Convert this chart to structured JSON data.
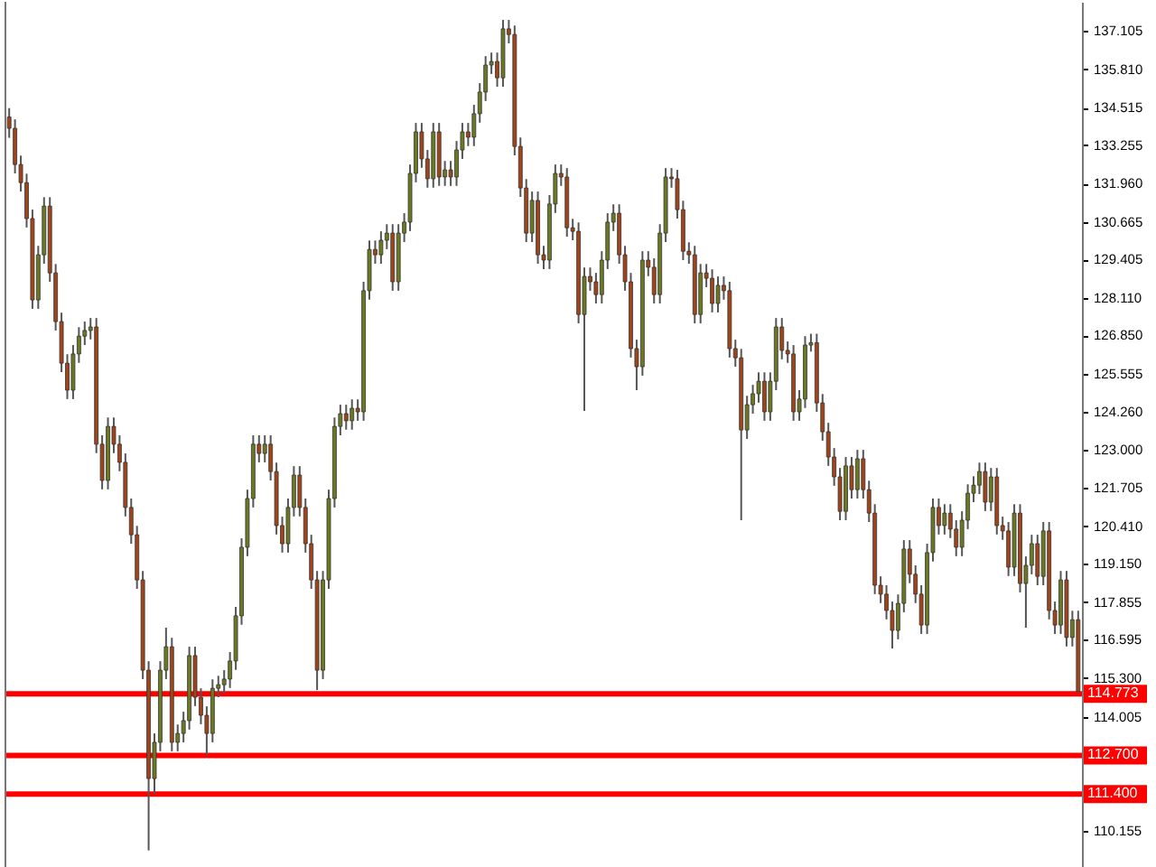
{
  "chart_data": {
    "type": "candlestick",
    "categories": [
      null,
      null,
      null,
      null,
      null,
      null,
      null,
      null,
      null,
      null,
      null,
      null,
      null,
      null,
      null,
      null,
      null,
      null,
      null,
      null,
      null,
      null,
      null,
      null,
      null,
      null,
      null,
      null,
      null,
      null,
      null,
      null,
      null,
      null,
      null,
      null,
      null,
      null,
      null,
      null,
      null,
      null,
      null,
      null,
      null,
      null,
      null,
      null,
      null,
      null,
      null,
      null,
      null,
      null,
      null,
      null,
      null,
      null,
      null,
      null,
      null,
      null,
      null,
      null,
      null,
      null,
      null,
      null,
      null,
      null,
      null,
      null,
      null,
      null,
      null,
      null,
      null,
      null,
      null,
      null,
      null,
      null,
      null,
      null,
      null,
      null,
      null,
      null,
      null,
      null,
      null,
      null,
      null,
      null,
      null,
      null,
      null,
      null,
      null,
      null,
      null,
      null,
      null,
      null,
      null,
      null,
      null,
      null,
      null,
      null,
      null,
      null,
      null,
      null,
      null,
      null,
      null,
      null,
      null,
      null,
      null,
      null,
      null,
      null,
      null,
      null,
      null,
      null,
      null,
      null,
      null,
      null,
      null,
      null,
      null,
      null,
      null,
      null,
      null,
      null,
      null,
      null,
      null,
      null,
      null,
      null,
      null,
      null,
      null,
      null,
      null,
      null,
      null,
      null,
      null,
      null,
      null,
      null,
      null,
      null,
      null,
      null,
      null,
      null,
      null,
      null,
      null,
      null,
      null,
      null,
      null,
      null,
      null,
      null,
      null,
      null,
      null,
      null,
      null,
      null,
      null,
      null,
      null,
      null,
      null
    ],
    "ohlc": [
      [
        134.2,
        134.5,
        133.5,
        133.82
      ],
      [
        133.82,
        134.12,
        132.3,
        132.6
      ],
      [
        132.6,
        132.9,
        131.69,
        131.99
      ],
      [
        131.99,
        132.29,
        130.48,
        130.78
      ],
      [
        130.78,
        131.08,
        127.74,
        128.04
      ],
      [
        128.04,
        129.86,
        127.74,
        129.56
      ],
      [
        129.56,
        131.5,
        129.26,
        131.2
      ],
      [
        131.2,
        131.5,
        128.65,
        128.95
      ],
      [
        128.95,
        129.25,
        127.01,
        127.31
      ],
      [
        127.31,
        127.61,
        125.61,
        125.91
      ],
      [
        125.91,
        126.21,
        124.7,
        125.0
      ],
      [
        125.0,
        126.52,
        124.7,
        126.22
      ],
      [
        126.22,
        127.12,
        125.92,
        126.82
      ],
      [
        126.82,
        127.31,
        126.52,
        127.01
      ],
      [
        127.01,
        127.43,
        126.71,
        127.13
      ],
      [
        127.13,
        127.43,
        122.88,
        123.18
      ],
      [
        123.18,
        123.48,
        121.66,
        121.96
      ],
      [
        121.96,
        124.08,
        121.66,
        123.78
      ],
      [
        123.78,
        124.08,
        122.88,
        123.18
      ],
      [
        123.18,
        123.48,
        122.27,
        122.57
      ],
      [
        122.57,
        122.87,
        120.75,
        121.05
      ],
      [
        121.05,
        121.35,
        119.83,
        120.13
      ],
      [
        120.13,
        120.43,
        118.31,
        118.61
      ],
      [
        118.61,
        118.91,
        115.27,
        115.57
      ],
      [
        115.57,
        115.87,
        109.5,
        111.92
      ],
      [
        111.92,
        113.44,
        111.4,
        113.14
      ],
      [
        113.14,
        115.87,
        112.84,
        115.57
      ],
      [
        115.57,
        117.0,
        115.27,
        116.36
      ],
      [
        116.36,
        116.66,
        112.84,
        113.14
      ],
      [
        113.14,
        113.74,
        112.84,
        113.44
      ],
      [
        113.44,
        114.17,
        113.14,
        113.87
      ],
      [
        113.87,
        116.36,
        113.57,
        116.06
      ],
      [
        116.06,
        116.36,
        114.36,
        114.66
      ],
      [
        114.66,
        114.96,
        113.75,
        114.05
      ],
      [
        114.05,
        114.35,
        112.7,
        113.44
      ],
      [
        113.44,
        115.26,
        113.14,
        114.96
      ],
      [
        114.96,
        115.38,
        114.66,
        115.08
      ],
      [
        115.08,
        115.57,
        114.78,
        115.27
      ],
      [
        115.27,
        116.18,
        114.97,
        115.88
      ],
      [
        115.88,
        117.7,
        115.58,
        117.4
      ],
      [
        117.4,
        120.01,
        117.1,
        119.71
      ],
      [
        119.71,
        121.65,
        119.41,
        121.35
      ],
      [
        121.35,
        123.48,
        121.05,
        123.18
      ],
      [
        123.18,
        123.48,
        122.57,
        122.87
      ],
      [
        122.87,
        123.48,
        122.57,
        123.18
      ],
      [
        123.18,
        123.48,
        121.96,
        122.26
      ],
      [
        122.26,
        122.56,
        120.14,
        120.44
      ],
      [
        120.44,
        120.74,
        119.53,
        119.83
      ],
      [
        119.83,
        121.35,
        119.53,
        121.05
      ],
      [
        121.05,
        122.44,
        120.75,
        122.14
      ],
      [
        122.14,
        122.44,
        120.75,
        121.05
      ],
      [
        121.05,
        121.35,
        119.53,
        119.83
      ],
      [
        119.83,
        120.13,
        118.31,
        118.61
      ],
      [
        118.61,
        118.91,
        114.9,
        115.57
      ],
      [
        115.57,
        118.91,
        115.27,
        118.61
      ],
      [
        118.61,
        121.65,
        118.31,
        121.35
      ],
      [
        121.35,
        124.08,
        121.05,
        123.78
      ],
      [
        123.78,
        124.51,
        123.48,
        124.21
      ],
      [
        124.21,
        124.51,
        123.67,
        123.97
      ],
      [
        123.97,
        124.69,
        123.67,
        124.39
      ],
      [
        124.39,
        124.69,
        123.97,
        124.27
      ],
      [
        124.27,
        128.65,
        123.97,
        128.35
      ],
      [
        128.35,
        130.04,
        128.05,
        129.74
      ],
      [
        129.74,
        130.04,
        129.26,
        129.56
      ],
      [
        129.56,
        130.35,
        129.26,
        130.05
      ],
      [
        130.05,
        130.59,
        129.75,
        130.29
      ],
      [
        130.29,
        130.59,
        128.35,
        128.65
      ],
      [
        128.65,
        130.59,
        128.35,
        130.29
      ],
      [
        130.29,
        130.96,
        129.99,
        130.66
      ],
      [
        130.66,
        132.6,
        130.36,
        132.3
      ],
      [
        132.3,
        134.0,
        132.0,
        133.7
      ],
      [
        133.7,
        134.0,
        132.49,
        132.79
      ],
      [
        132.79,
        133.09,
        131.82,
        132.12
      ],
      [
        132.12,
        134.0,
        131.82,
        133.7
      ],
      [
        133.7,
        134.0,
        131.88,
        132.18
      ],
      [
        132.18,
        132.72,
        131.88,
        132.42
      ],
      [
        132.42,
        132.72,
        131.88,
        132.18
      ],
      [
        132.18,
        133.39,
        131.88,
        133.09
      ],
      [
        133.09,
        134.0,
        132.79,
        133.7
      ],
      [
        133.7,
        134.0,
        133.22,
        133.52
      ],
      [
        133.52,
        134.61,
        133.22,
        134.31
      ],
      [
        134.31,
        135.34,
        134.01,
        135.04
      ],
      [
        135.04,
        136.25,
        134.74,
        135.95
      ],
      [
        135.95,
        136.37,
        135.65,
        136.07
      ],
      [
        136.07,
        136.37,
        135.22,
        135.52
      ],
      [
        135.52,
        137.47,
        135.22,
        137.17
      ],
      [
        137.17,
        137.47,
        136.68,
        136.98
      ],
      [
        136.98,
        137.28,
        132.91,
        133.21
      ],
      [
        133.21,
        133.51,
        131.51,
        131.81
      ],
      [
        131.81,
        132.11,
        129.99,
        130.29
      ],
      [
        130.29,
        131.69,
        129.99,
        131.39
      ],
      [
        131.39,
        131.69,
        129.26,
        129.56
      ],
      [
        129.56,
        129.86,
        129.08,
        129.38
      ],
      [
        129.38,
        131.57,
        129.08,
        131.27
      ],
      [
        131.27,
        132.6,
        130.97,
        132.3
      ],
      [
        132.3,
        132.6,
        131.88,
        132.18
      ],
      [
        132.18,
        132.48,
        130.17,
        130.47
      ],
      [
        130.47,
        130.77,
        130.05,
        130.35
      ],
      [
        130.35,
        130.65,
        127.25,
        127.55
      ],
      [
        127.55,
        129.13,
        124.3,
        128.83
      ],
      [
        128.83,
        129.13,
        128.35,
        128.65
      ],
      [
        128.65,
        128.95,
        127.92,
        128.22
      ],
      [
        128.22,
        129.68,
        127.92,
        129.38
      ],
      [
        129.38,
        130.96,
        129.08,
        130.66
      ],
      [
        130.66,
        131.26,
        130.36,
        130.96
      ],
      [
        130.96,
        131.26,
        129.26,
        129.56
      ],
      [
        129.56,
        129.86,
        128.35,
        128.65
      ],
      [
        128.65,
        128.95,
        126.1,
        126.4
      ],
      [
        126.4,
        126.7,
        125.0,
        125.79
      ],
      [
        125.79,
        129.68,
        125.49,
        129.38
      ],
      [
        129.38,
        129.68,
        128.84,
        129.14
      ],
      [
        129.14,
        129.44,
        127.92,
        128.22
      ],
      [
        128.22,
        130.59,
        127.92,
        130.29
      ],
      [
        130.29,
        132.48,
        129.99,
        132.18
      ],
      [
        132.18,
        132.48,
        131.82,
        132.12
      ],
      [
        132.12,
        132.42,
        130.78,
        131.08
      ],
      [
        131.08,
        131.38,
        129.38,
        129.68
      ],
      [
        129.68,
        129.98,
        129.26,
        129.56
      ],
      [
        129.56,
        129.86,
        127.25,
        127.55
      ],
      [
        127.55,
        129.25,
        127.25,
        128.95
      ],
      [
        128.95,
        129.25,
        128.47,
        128.77
      ],
      [
        128.77,
        129.07,
        127.62,
        127.92
      ],
      [
        127.92,
        128.83,
        127.62,
        128.53
      ],
      [
        128.53,
        128.83,
        128.05,
        128.35
      ],
      [
        128.35,
        128.65,
        126.1,
        126.4
      ],
      [
        126.4,
        126.7,
        125.79,
        126.09
      ],
      [
        126.09,
        126.39,
        120.62,
        123.66
      ],
      [
        123.66,
        124.81,
        123.36,
        124.51
      ],
      [
        124.51,
        125.18,
        124.21,
        124.88
      ],
      [
        124.88,
        125.6,
        124.58,
        125.3
      ],
      [
        125.3,
        125.6,
        123.97,
        124.27
      ],
      [
        124.27,
        125.6,
        123.97,
        125.3
      ],
      [
        125.3,
        127.43,
        125.0,
        127.13
      ],
      [
        127.13,
        127.43,
        126.04,
        126.34
      ],
      [
        126.34,
        126.64,
        125.92,
        126.22
      ],
      [
        126.22,
        126.52,
        123.97,
        124.27
      ],
      [
        124.27,
        125.0,
        123.97,
        124.7
      ],
      [
        124.7,
        126.82,
        124.4,
        126.52
      ],
      [
        126.52,
        126.9,
        126.3,
        126.6
      ],
      [
        126.6,
        126.9,
        124.27,
        124.57
      ],
      [
        124.57,
        124.87,
        123.3,
        123.6
      ],
      [
        123.6,
        123.9,
        122.45,
        122.75
      ],
      [
        122.75,
        123.05,
        121.78,
        122.08
      ],
      [
        122.08,
        122.38,
        120.62,
        120.92
      ],
      [
        120.92,
        122.75,
        120.62,
        122.45
      ],
      [
        122.45,
        122.75,
        121.35,
        121.65
      ],
      [
        121.65,
        122.99,
        121.35,
        122.69
      ],
      [
        122.69,
        122.99,
        121.35,
        121.65
      ],
      [
        121.65,
        121.95,
        120.56,
        120.86
      ],
      [
        120.86,
        121.16,
        118.13,
        118.43
      ],
      [
        118.43,
        118.73,
        117.83,
        118.13
      ],
      [
        118.13,
        118.43,
        117.28,
        117.58
      ],
      [
        117.58,
        117.88,
        116.3,
        116.91
      ],
      [
        116.91,
        118.12,
        116.61,
        117.82
      ],
      [
        117.82,
        119.95,
        117.52,
        119.65
      ],
      [
        119.65,
        119.95,
        118.5,
        118.8
      ],
      [
        118.8,
        119.1,
        117.83,
        118.13
      ],
      [
        118.13,
        118.43,
        116.79,
        117.09
      ],
      [
        117.09,
        119.83,
        116.79,
        119.53
      ],
      [
        119.53,
        121.35,
        119.23,
        121.05
      ],
      [
        121.05,
        121.35,
        120.14,
        120.44
      ],
      [
        120.44,
        121.16,
        120.14,
        120.86
      ],
      [
        120.86,
        121.16,
        120.02,
        120.32
      ],
      [
        120.32,
        120.62,
        119.41,
        119.71
      ],
      [
        119.71,
        120.92,
        119.41,
        120.62
      ],
      [
        120.62,
        121.83,
        120.32,
        121.53
      ],
      [
        121.53,
        122.1,
        121.23,
        121.8
      ],
      [
        121.8,
        122.56,
        121.5,
        122.26
      ],
      [
        122.26,
        122.56,
        120.93,
        121.23
      ],
      [
        121.23,
        122.38,
        120.93,
        122.08
      ],
      [
        122.08,
        122.38,
        120.14,
        120.44
      ],
      [
        120.44,
        120.74,
        119.96,
        120.26
      ],
      [
        120.26,
        120.56,
        118.74,
        119.04
      ],
      [
        119.04,
        121.16,
        118.74,
        120.86
      ],
      [
        120.86,
        121.16,
        118.19,
        118.49
      ],
      [
        118.49,
        119.4,
        117.0,
        119.1
      ],
      [
        119.1,
        120.13,
        118.8,
        119.83
      ],
      [
        119.83,
        120.13,
        118.43,
        118.73
      ],
      [
        118.73,
        120.56,
        118.43,
        120.26
      ],
      [
        120.26,
        120.56,
        117.28,
        117.58
      ],
      [
        117.58,
        117.88,
        116.79,
        117.09
      ],
      [
        117.09,
        118.91,
        116.79,
        118.61
      ],
      [
        118.61,
        118.91,
        116.37,
        116.67
      ],
      [
        116.67,
        117.57,
        116.37,
        117.27
      ],
      [
        117.27,
        117.57,
        114.8,
        114.85
      ]
    ],
    "ylim": [
      108.88,
      138.08
    ],
    "yticks": [
      137.105,
      {
        "value": 135.81,
        "label": "135.810"
      },
      134.515,
      133.255,
      {
        "value": 131.96,
        "label": "131.960"
      },
      130.665,
      129.405,
      {
        "value": 128.11,
        "label": "128.110"
      },
      {
        "value": 126.85,
        "label": "126.850"
      },
      125.555,
      {
        "value": 124.26,
        "label": "124.260"
      },
      {
        "value": 123,
        "label": "123.000"
      },
      121.705,
      {
        "value": 120.41,
        "label": "120.410"
      },
      {
        "value": 119.15,
        "label": "119.150"
      },
      117.855,
      116.595,
      {
        "value": 115.3,
        "label": "115.300"
      },
      114.005,
      110.155
    ],
    "ref_lines": [
      {
        "axis": "y",
        "value": 114.773,
        "label": "114.773",
        "color": "#ff0000"
      },
      {
        "axis": "y",
        "value": 112.7,
        "label": "112.700",
        "color": "#ff0000"
      },
      {
        "axis": "y",
        "value": 111.4,
        "label": "111.400",
        "color": "#ff0000"
      }
    ],
    "grid": false,
    "legend": false
  }
}
